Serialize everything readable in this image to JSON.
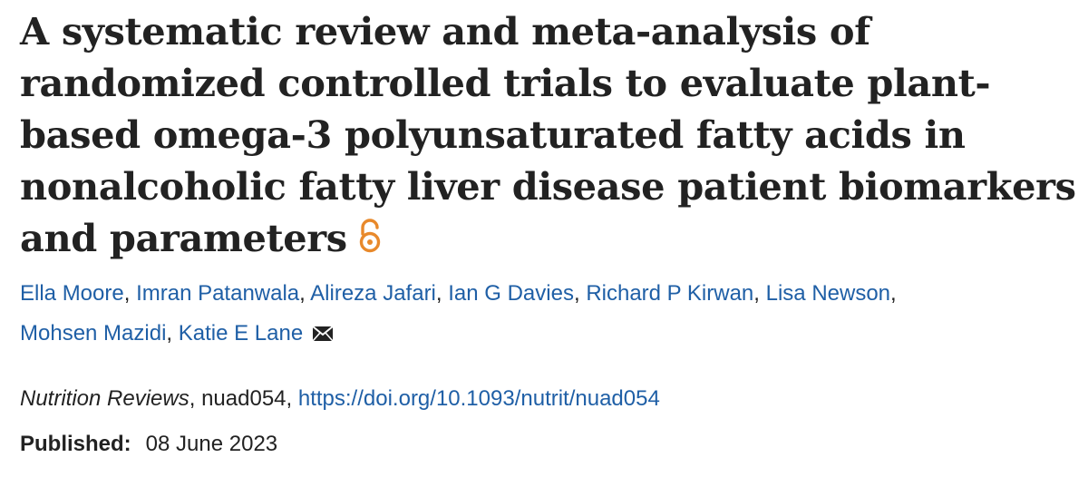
{
  "article": {
    "title_lines": [
      "A systematic review and meta-analysis of",
      "randomized controlled trials to evaluate plant-",
      "based omega-3 polyunsaturated fatty acids in",
      "nonalcoholic fatty liver disease patient biomarkers",
      "and parameters"
    ],
    "open_access_icon": "open-access-lock-icon",
    "authors": [
      "Ella Moore",
      "Imran Patanwala",
      "Alireza Jafari",
      "Ian G Davies",
      "Richard P Kirwan",
      "Lisa Newson",
      "Mohsen Mazidi",
      "Katie E Lane"
    ],
    "separator": ",",
    "corresponding_icon": "envelope-icon",
    "citation": {
      "journal": "Nutrition Reviews",
      "article_id": "nuad054",
      "doi": "https://doi.org/10.1093/nutrit/nuad054"
    },
    "published": {
      "label": "Published:",
      "date": "08 June 2023"
    }
  },
  "colors": {
    "title": "#222222",
    "link": "#1f5fa6",
    "open_access": "#e8892b",
    "text": "#222222"
  }
}
